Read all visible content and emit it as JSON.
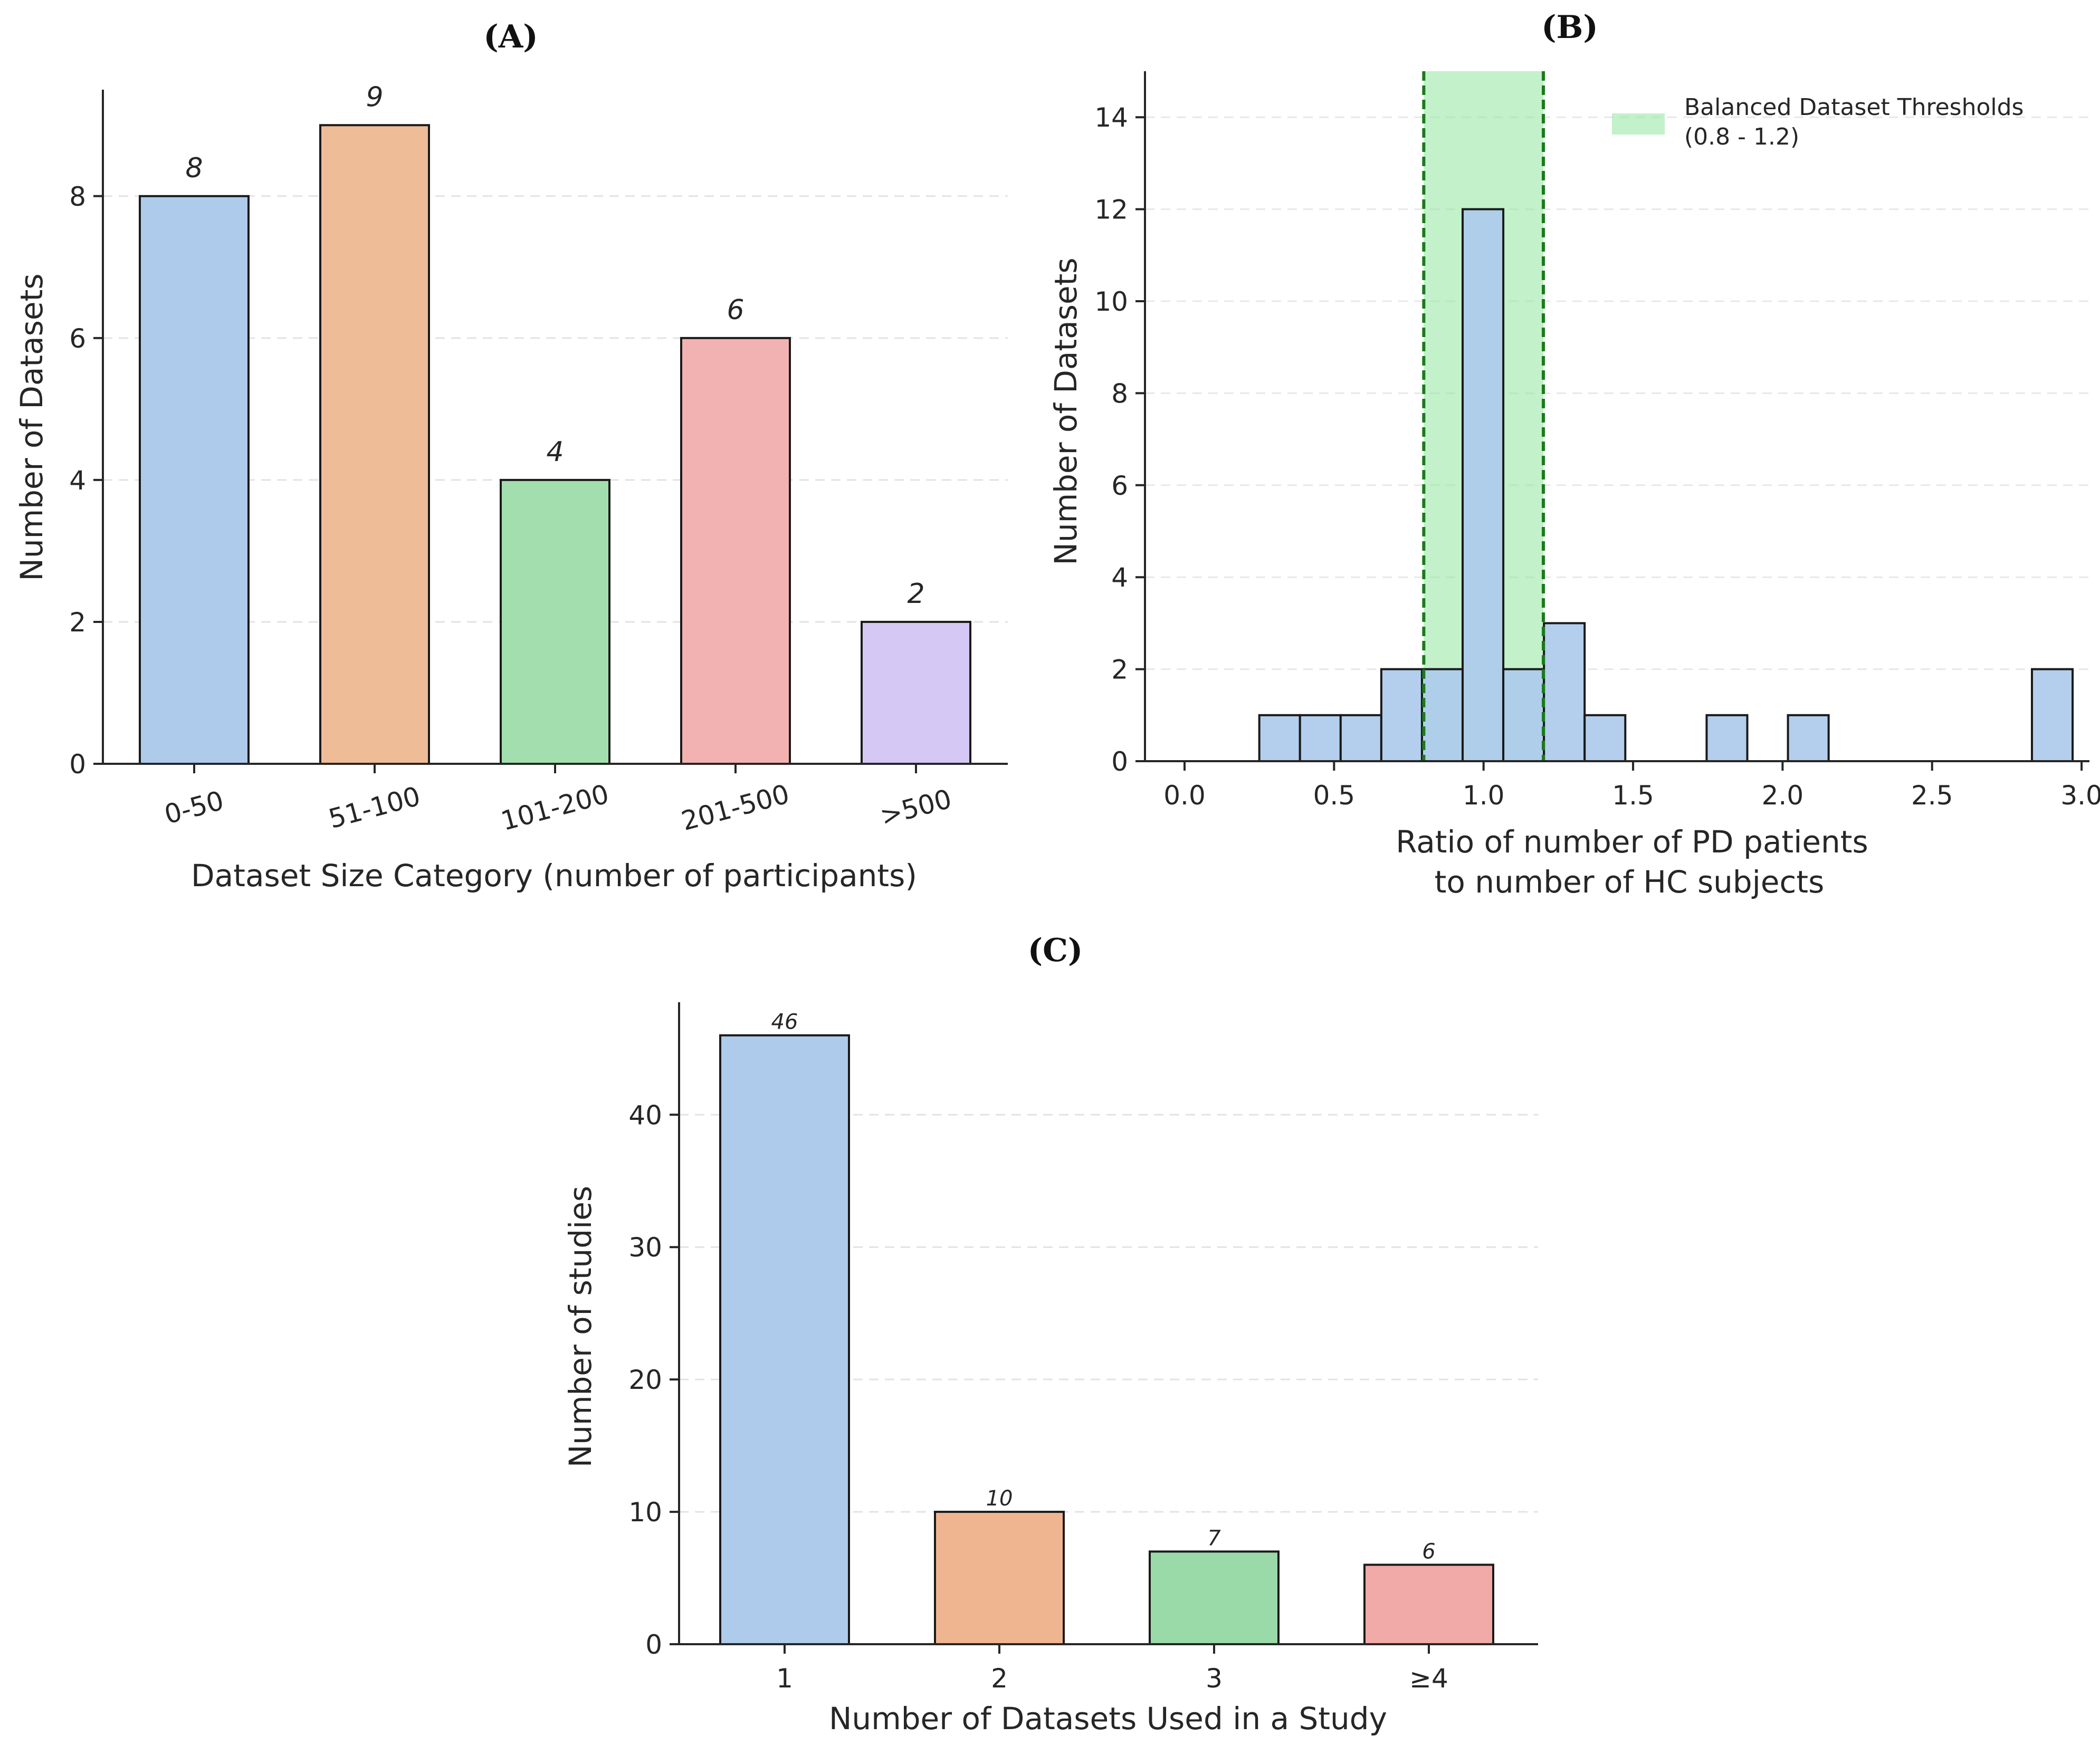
{
  "chart_data": [
    {
      "panel": "(A)",
      "type": "bar",
      "title": "(A)",
      "xlabel": "Dataset Size Category (number of participants)",
      "ylabel": "Number of Datasets",
      "categories": [
        "0-50",
        "51-100",
        "101-200",
        "201-500",
        ">500"
      ],
      "values": [
        8,
        9,
        4,
        6,
        2
      ],
      "data_labels": [
        "8",
        "9",
        "4",
        "6",
        "2"
      ],
      "colors": [
        "#aecbeb",
        "#efbc98",
        "#a3dfae",
        "#f2b2b1",
        "#d5c8f4"
      ],
      "yticks": [
        "0",
        "2",
        "4",
        "6",
        "8"
      ],
      "ylim": [
        0,
        9.5
      ],
      "grid": "horizontal dashed"
    },
    {
      "panel": "(B)",
      "type": "bar",
      "title": "(B)",
      "xlabel": [
        "Ratio of number of PD patients",
        "to number of HC subjects"
      ],
      "ylabel": "Number of Datasets",
      "bins": [
        {
          "x0": 0.25,
          "x1": 0.386,
          "count": 1
        },
        {
          "x0": 0.386,
          "x1": 0.522,
          "count": 1
        },
        {
          "x0": 0.522,
          "x1": 0.658,
          "count": 1
        },
        {
          "x0": 0.658,
          "x1": 0.794,
          "count": 2
        },
        {
          "x0": 0.794,
          "x1": 0.93,
          "count": 2
        },
        {
          "x0": 0.93,
          "x1": 1.066,
          "count": 12
        },
        {
          "x0": 1.066,
          "x1": 1.202,
          "count": 2
        },
        {
          "x0": 1.202,
          "x1": 1.338,
          "count": 3
        },
        {
          "x0": 1.338,
          "x1": 1.474,
          "count": 1
        },
        {
          "x0": 1.746,
          "x1": 1.882,
          "count": 1
        },
        {
          "x0": 2.018,
          "x1": 2.154,
          "count": 1
        },
        {
          "x0": 2.834,
          "x1": 2.97,
          "count": 2
        }
      ],
      "band": {
        "from": 0.8,
        "to": 1.2,
        "color": "#90e59f"
      },
      "thresholds": [
        0.8,
        1.2
      ],
      "threshold_color": "#1b7a1b",
      "bar_color": "#aecbeb",
      "legend": [
        "Balanced Dataset Thresholds",
        " (0.8 - 1.2)"
      ],
      "legend_position": "top-right",
      "xticks": [
        "0.0",
        "0.5",
        "1.0",
        "1.5",
        "2.0",
        "2.5",
        "3.0"
      ],
      "xtick_values": [
        0,
        0.5,
        1.0,
        1.5,
        2.0,
        2.5,
        3.0
      ],
      "yticks": [
        "0",
        "2",
        "4",
        "6",
        "8",
        "10",
        "12",
        "14"
      ],
      "xlim": [
        -0.1,
        3.1
      ],
      "ylim": [
        0,
        15
      ]
    },
    {
      "panel": "(C)",
      "type": "bar",
      "title": "(C)",
      "xlabel": "Number of Datasets Used in a Study",
      "ylabel": "Number of studies",
      "categories": [
        "1",
        "2",
        "3",
        "≥4"
      ],
      "values": [
        46,
        10,
        7,
        6
      ],
      "data_labels": [
        "46",
        "10",
        "7",
        "6"
      ],
      "colors": [
        "#aecbeb",
        "#efb590",
        "#9ad9a8",
        "#f2aaa9"
      ],
      "yticks": [
        "0",
        "10",
        "20",
        "30",
        "40"
      ],
      "ylim": [
        0,
        48.5
      ],
      "grid": "horizontal dashed"
    }
  ]
}
